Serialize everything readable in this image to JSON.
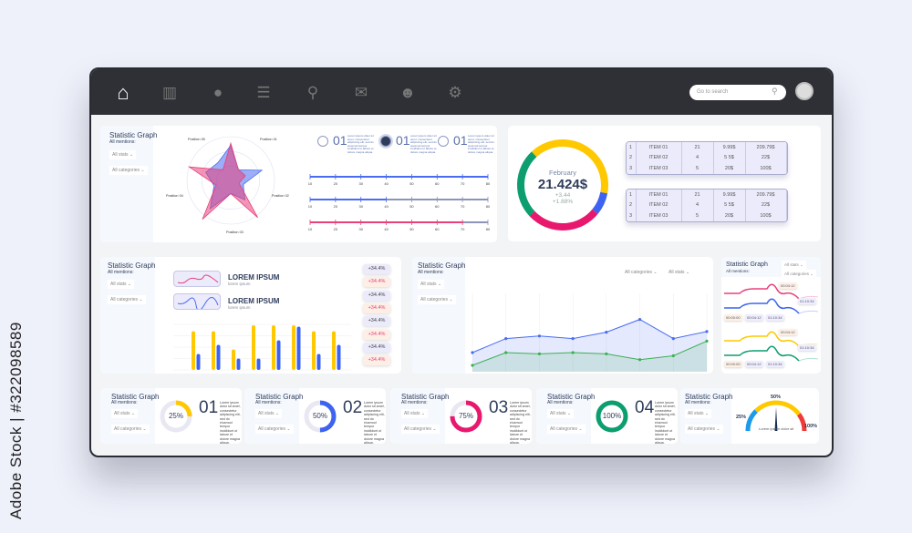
{
  "watermark": "Adobe Stock | #322098589",
  "nav": {
    "items": [
      "home-icon",
      "bar-chart-icon",
      "chat-icon",
      "desk-icon",
      "search-icon",
      "mail-icon",
      "user-star-icon",
      "gear-icon"
    ],
    "search_placeholder": "Go to search"
  },
  "common": {
    "title": "Statistic Graph",
    "mentions": "All mentions:",
    "stats": "All stats",
    "categories": "All categories"
  },
  "radar": {
    "labels": [
      "Position 01",
      "Position 02",
      "Position 03",
      "Position 04",
      "Position 05"
    ],
    "series": [
      {
        "color": "#e8407a",
        "values": [
          0.85,
          0.3,
          0.35,
          0.2,
          1.05,
          0.3,
          1.1,
          0.35,
          1.0,
          0.3
        ]
      },
      {
        "color": "#4a6cf0",
        "values": [
          0.8,
          0.3,
          0.75,
          0.3,
          0.55,
          0.3,
          0.8,
          0.4,
          0.6,
          0.5
        ]
      }
    ]
  },
  "options": [
    {
      "num": "01",
      "selected": false,
      "text": "Lorem ipsum dolor sit amet, consectetur adipiscing elit, sed do eiusmod tempor incididunt ut labore et dolore magna aliqua."
    },
    {
      "num": "01",
      "selected": true,
      "text": "Lorem ipsum dolor sit amet, consectetur adipiscing elit, sed do eiusmod tempor incididunt ut labore et dolore magna aliqua."
    },
    {
      "num": "01",
      "selected": false,
      "text": "Lorem ipsum dolor sit amet, consectetur adipiscing elit, sed do eiusmod tempor incididunt ut labore et dolore magna aliqua."
    }
  ],
  "sliders": {
    "ticks": [
      "10",
      "20",
      "30",
      "40",
      "50",
      "60",
      "70",
      "80"
    ],
    "values": [
      {
        "value": 80,
        "color": "#4a6cf0"
      },
      {
        "value": 40,
        "color": "#4a6cf0"
      },
      {
        "value": 70,
        "color": "#e8407a"
      }
    ]
  },
  "summary": {
    "month": "February",
    "amount": "21.424$",
    "change1": "+3.44",
    "change2": "+1.88%",
    "segments": [
      {
        "color": "#ffc800",
        "value": 40
      },
      {
        "color": "#3d63f0",
        "value": 8
      },
      {
        "color": "#e8186e",
        "value": 27
      },
      {
        "color": "#0c9e6e",
        "value": 25
      }
    ]
  },
  "tables": [
    [
      [
        "1",
        "ITEM 01",
        "21",
        "9.99$",
        "209.79$"
      ],
      [
        "2",
        "ITEM 02",
        "4",
        "5 5$",
        "22$"
      ],
      [
        "3",
        "ITEM 03",
        "5",
        "20$",
        "100$"
      ]
    ],
    [
      [
        "1",
        "ITEM 01",
        "21",
        "9.99$",
        "209.79$"
      ],
      [
        "2",
        "ITEM 02",
        "4",
        "5 5$",
        "22$"
      ],
      [
        "3",
        "ITEM 03",
        "5",
        "20$",
        "100$"
      ]
    ]
  ],
  "lorem": [
    {
      "title": "LOREM IPSUM",
      "sub": "lorem ipsum"
    },
    {
      "title": "LOREM IPSUM",
      "sub": "lorem ipsum"
    }
  ],
  "badges": [
    {
      "text": "+34.4%",
      "type": "neutral"
    },
    {
      "text": "+34.4%",
      "type": "pink"
    },
    {
      "text": "+34.4%",
      "type": "neutral"
    },
    {
      "text": "+34.4%",
      "type": "pink"
    },
    {
      "text": "+34.4%",
      "type": "neutral"
    },
    {
      "text": "+34.4%",
      "type": "pink"
    },
    {
      "text": "+34.4%",
      "type": "neutral"
    },
    {
      "text": "+34.4%",
      "type": "pink"
    }
  ],
  "chart_data": [
    {
      "type": "bar",
      "ylim": [
        0,
        100
      ],
      "grid": true,
      "series": [
        {
          "color": "#ffc800",
          "values": [
            85,
            85,
            45,
            98,
            98,
            98,
            85,
            85
          ]
        },
        {
          "color": "#3d63f0",
          "values": [
            35,
            55,
            25,
            25,
            65,
            95,
            35,
            55
          ]
        }
      ]
    },
    {
      "type": "area",
      "ylim": [
        0,
        100
      ],
      "grid": true,
      "series": [
        {
          "color": "#4a6cf0",
          "values": [
            30,
            52,
            56,
            52,
            62,
            82,
            52,
            63
          ]
        },
        {
          "color": "#3cb054",
          "values": [
            10,
            30,
            28,
            30,
            28,
            19,
            25,
            48
          ]
        }
      ]
    }
  ],
  "timeline": {
    "tags_top": [
      "00:04:12",
      "01:10:34"
    ],
    "tags_row": [
      "00:00:00",
      "00:04:12",
      "01:10:34"
    ],
    "colors": [
      "#e8407a",
      "#3d63f0",
      "#ffc800",
      "#0c9e6e"
    ]
  },
  "progress": [
    {
      "pct": "25%",
      "value": 25,
      "num": "01",
      "color": "#ffc800",
      "text": "Lorem ipsum dolor sit amet, consectetur adipiscing elit, sed do eiusmod tempor incididunt ut labore et dolore magna aliqua."
    },
    {
      "pct": "50%",
      "value": 50,
      "num": "02",
      "color": "#3d63f0",
      "text": "Lorem ipsum dolor sit amet, consectetur adipiscing elit, sed do eiusmod tempor incididunt ut labore et dolore magna aliqua."
    },
    {
      "pct": "75%",
      "value": 75,
      "num": "03",
      "color": "#e8186e",
      "text": "Lorem ipsum dolor sit amet, consectetur adipiscing elit, sed do eiusmod tempor incididunt ut labore et dolore magna aliqua."
    },
    {
      "pct": "100%",
      "value": 100,
      "num": "04",
      "color": "#0c9e6e",
      "text": "Lorem ipsum dolor sit amet, consectetur adipiscing elit, sed do eiusmod tempor incididunt ut labore et dolore magna aliqua."
    }
  ],
  "gauge": {
    "min": "25%",
    "mid": "50%",
    "max": "100%",
    "caption": "Lorem ipsum dolor sit",
    "value": 50
  }
}
